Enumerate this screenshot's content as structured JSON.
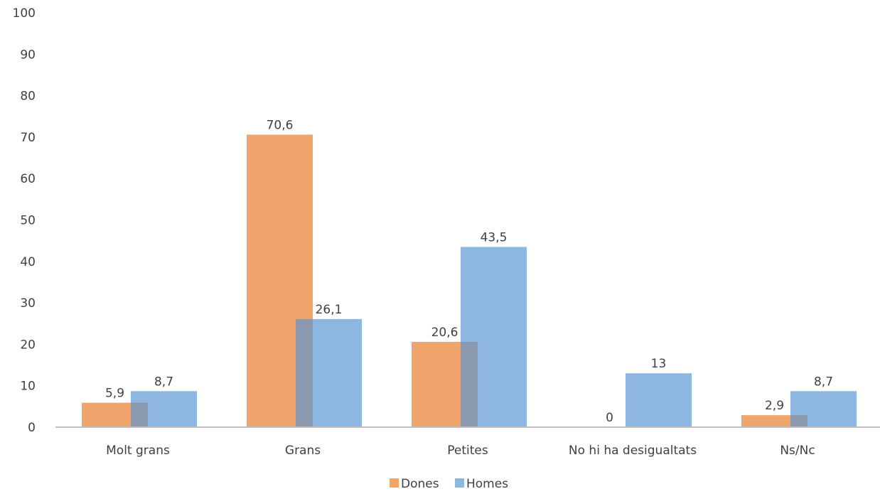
{
  "chart_data": {
    "type": "bar",
    "categories": [
      "Molt grans",
      "Grans",
      "Petites",
      "No hi ha desigualtats",
      "Ns/Nc"
    ],
    "series": [
      {
        "name": "Dones",
        "color": "#F0A56C",
        "values": [
          5.9,
          70.6,
          20.6,
          0,
          2.9
        ],
        "labels": [
          "5,9",
          "70,6",
          "20,6",
          "0",
          "2,9"
        ]
      },
      {
        "name": "Homes",
        "color": "#8DB7E1",
        "values": [
          8.7,
          26.1,
          43.5,
          13,
          8.7
        ],
        "labels": [
          "8,7",
          "26,1",
          "43,5",
          "13",
          "8,7"
        ]
      }
    ],
    "overlap_color": "#8A99AD",
    "ylim": [
      0,
      100
    ],
    "yticks": [
      "0",
      "10",
      "20",
      "30",
      "40",
      "50",
      "60",
      "70",
      "80",
      "90",
      "100"
    ],
    "grid": false,
    "legend": "bottom"
  }
}
